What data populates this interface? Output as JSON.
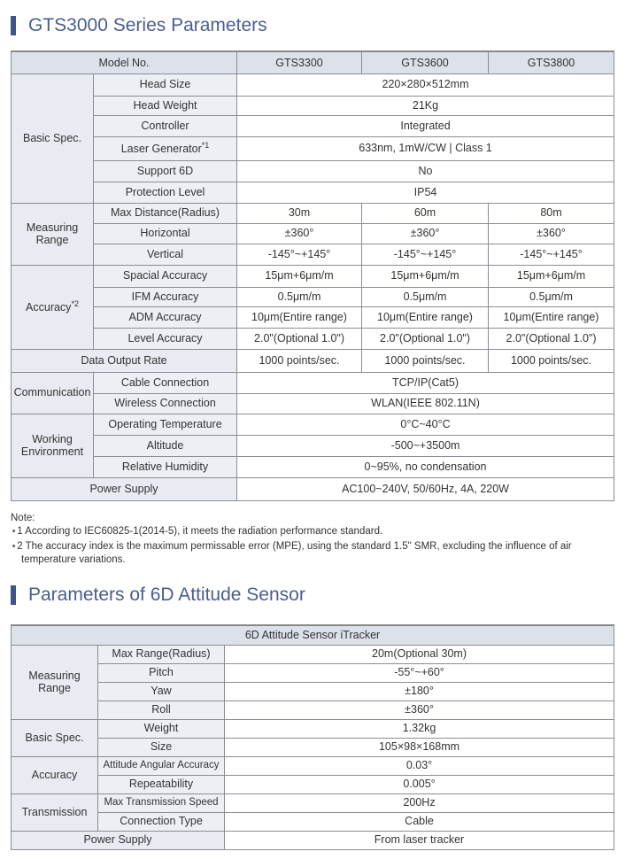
{
  "section1": {
    "title": "GTS3000 Series Parameters"
  },
  "table1": {
    "header": {
      "label": "Model No.",
      "models": [
        "GTS3300",
        "GTS3600",
        "GTS3800"
      ]
    },
    "groups": [
      {
        "name": "Basic Spec.",
        "rows": [
          {
            "label": "Head Size",
            "values": [
              "220×280×512mm"
            ],
            "h": 25
          },
          {
            "label": "Head Weight",
            "values": [
              "21Kg"
            ],
            "h": 22
          },
          {
            "label": "Controller",
            "values": [
              "Integrated"
            ],
            "h": 24
          },
          {
            "label": "Laser Generator",
            "sup": "*1",
            "values": [
              "633nm, 1mW/CW | Class 1"
            ],
            "h": 27
          },
          {
            "label": "Support 6D",
            "values": [
              "No"
            ],
            "h": 24
          },
          {
            "label": "Protection Level",
            "values": [
              "IP54"
            ],
            "h": 24
          }
        ]
      },
      {
        "name": "Measuring Range",
        "rows": [
          {
            "label": "Max Distance(Radius)",
            "values": [
              "30m",
              "60m",
              "80m"
            ],
            "h": 23
          },
          {
            "label": "Horizontal",
            "values": [
              "±360°",
              "±360°",
              "±360°"
            ],
            "h": 23
          },
          {
            "label": "Vertical",
            "values": [
              "-145°~+145°",
              "-145°~+145°",
              "-145°~+145°"
            ],
            "h": 24
          }
        ]
      },
      {
        "name": "Accuracy",
        "sup": "*2",
        "rows": [
          {
            "label": "Spacial Accuracy",
            "values": [
              "15μm+6μm/m",
              "15μm+6μm/m",
              "15μm+6μm/m"
            ],
            "h": 25
          },
          {
            "label": "IFM Accuracy",
            "values": [
              "0.5μm/m",
              "0.5μm/m",
              "0.5μm/m"
            ],
            "h": 22
          },
          {
            "label": "ADM Accuracy",
            "values": [
              "10μm(Entire range)",
              "10μm(Entire range)",
              "10μm(Entire range)"
            ],
            "h": 24
          },
          {
            "label": "Level Accuracy",
            "values": [
              "2.0\"(Optional 1.0\")",
              "2.0\"(Optional 1.0\")",
              "2.0\"(Optional 1.0\")"
            ],
            "h": 24
          }
        ]
      },
      {
        "span": "Data Output Rate",
        "rows": [
          {
            "values": [
              "1000 points/sec.",
              "1000 points/sec.",
              "1000 points/sec."
            ],
            "h": 26
          }
        ]
      },
      {
        "name": "Communication",
        "rows": [
          {
            "label": "Cable Connection",
            "values": [
              "TCP/IP(Cat5)"
            ],
            "h": 24
          },
          {
            "label": "Wireless Connection",
            "values": [
              "WLAN(IEEE 802.11N)"
            ],
            "h": 23
          }
        ]
      },
      {
        "name": "Working Environment",
        "rows": [
          {
            "label": "Operating Temperature",
            "values": [
              "0°C~40°C"
            ],
            "h": 24
          },
          {
            "label": "Altitude",
            "values": [
              "-500~+3500m"
            ],
            "h": 24
          },
          {
            "label": "Relative Humidity",
            "values": [
              "0~95%, no condensation"
            ],
            "h": 24
          }
        ]
      },
      {
        "span": "Power Supply",
        "rows": [
          {
            "values": [
              "AC100~240V, 50/60Hz, 4A, 220W"
            ],
            "h": 26
          }
        ]
      }
    ]
  },
  "notes": {
    "title": "Note:",
    "items": [
      "⋆1 According to IEC60825-1(2014-5), it meets the radiation performance standard.",
      "⋆2 The accuracy index is the maximum permissable error (MPE), using the standard 1.5\" SMR, excluding the influence of air",
      "temperature variations."
    ]
  },
  "section2": {
    "title": "Parameters of 6D Attitude Sensor"
  },
  "table2": {
    "header": "6D Attitude Sensor iTracker",
    "groups": [
      {
        "name": "Measuring Range",
        "rows": [
          {
            "label": "Max Range(Radius)",
            "value": "20m(Optional 30m)"
          },
          {
            "label": "Pitch",
            "value": "-55°~+60°"
          },
          {
            "label": "Yaw",
            "value": "±180°"
          },
          {
            "label": "Roll",
            "value": "±360°"
          }
        ]
      },
      {
        "name": "Basic Spec.",
        "rows": [
          {
            "label": "Weight",
            "value": "1.32kg"
          },
          {
            "label": "Size",
            "value": "105×98×168mm"
          }
        ]
      },
      {
        "name": "Accuracy",
        "rows": [
          {
            "label": "Attitude Angular Accuracy",
            "value": "0.03°"
          },
          {
            "label": "Repeatability",
            "value": "0.005°"
          }
        ]
      },
      {
        "name": "Transmission",
        "rows": [
          {
            "label": "Max Transmission Speed",
            "value": "200Hz"
          },
          {
            "label": "Connection Type",
            "value": "Cable"
          }
        ]
      },
      {
        "span": "Power Supply",
        "rows": [
          {
            "value": "From laser tracker"
          }
        ]
      }
    ]
  }
}
